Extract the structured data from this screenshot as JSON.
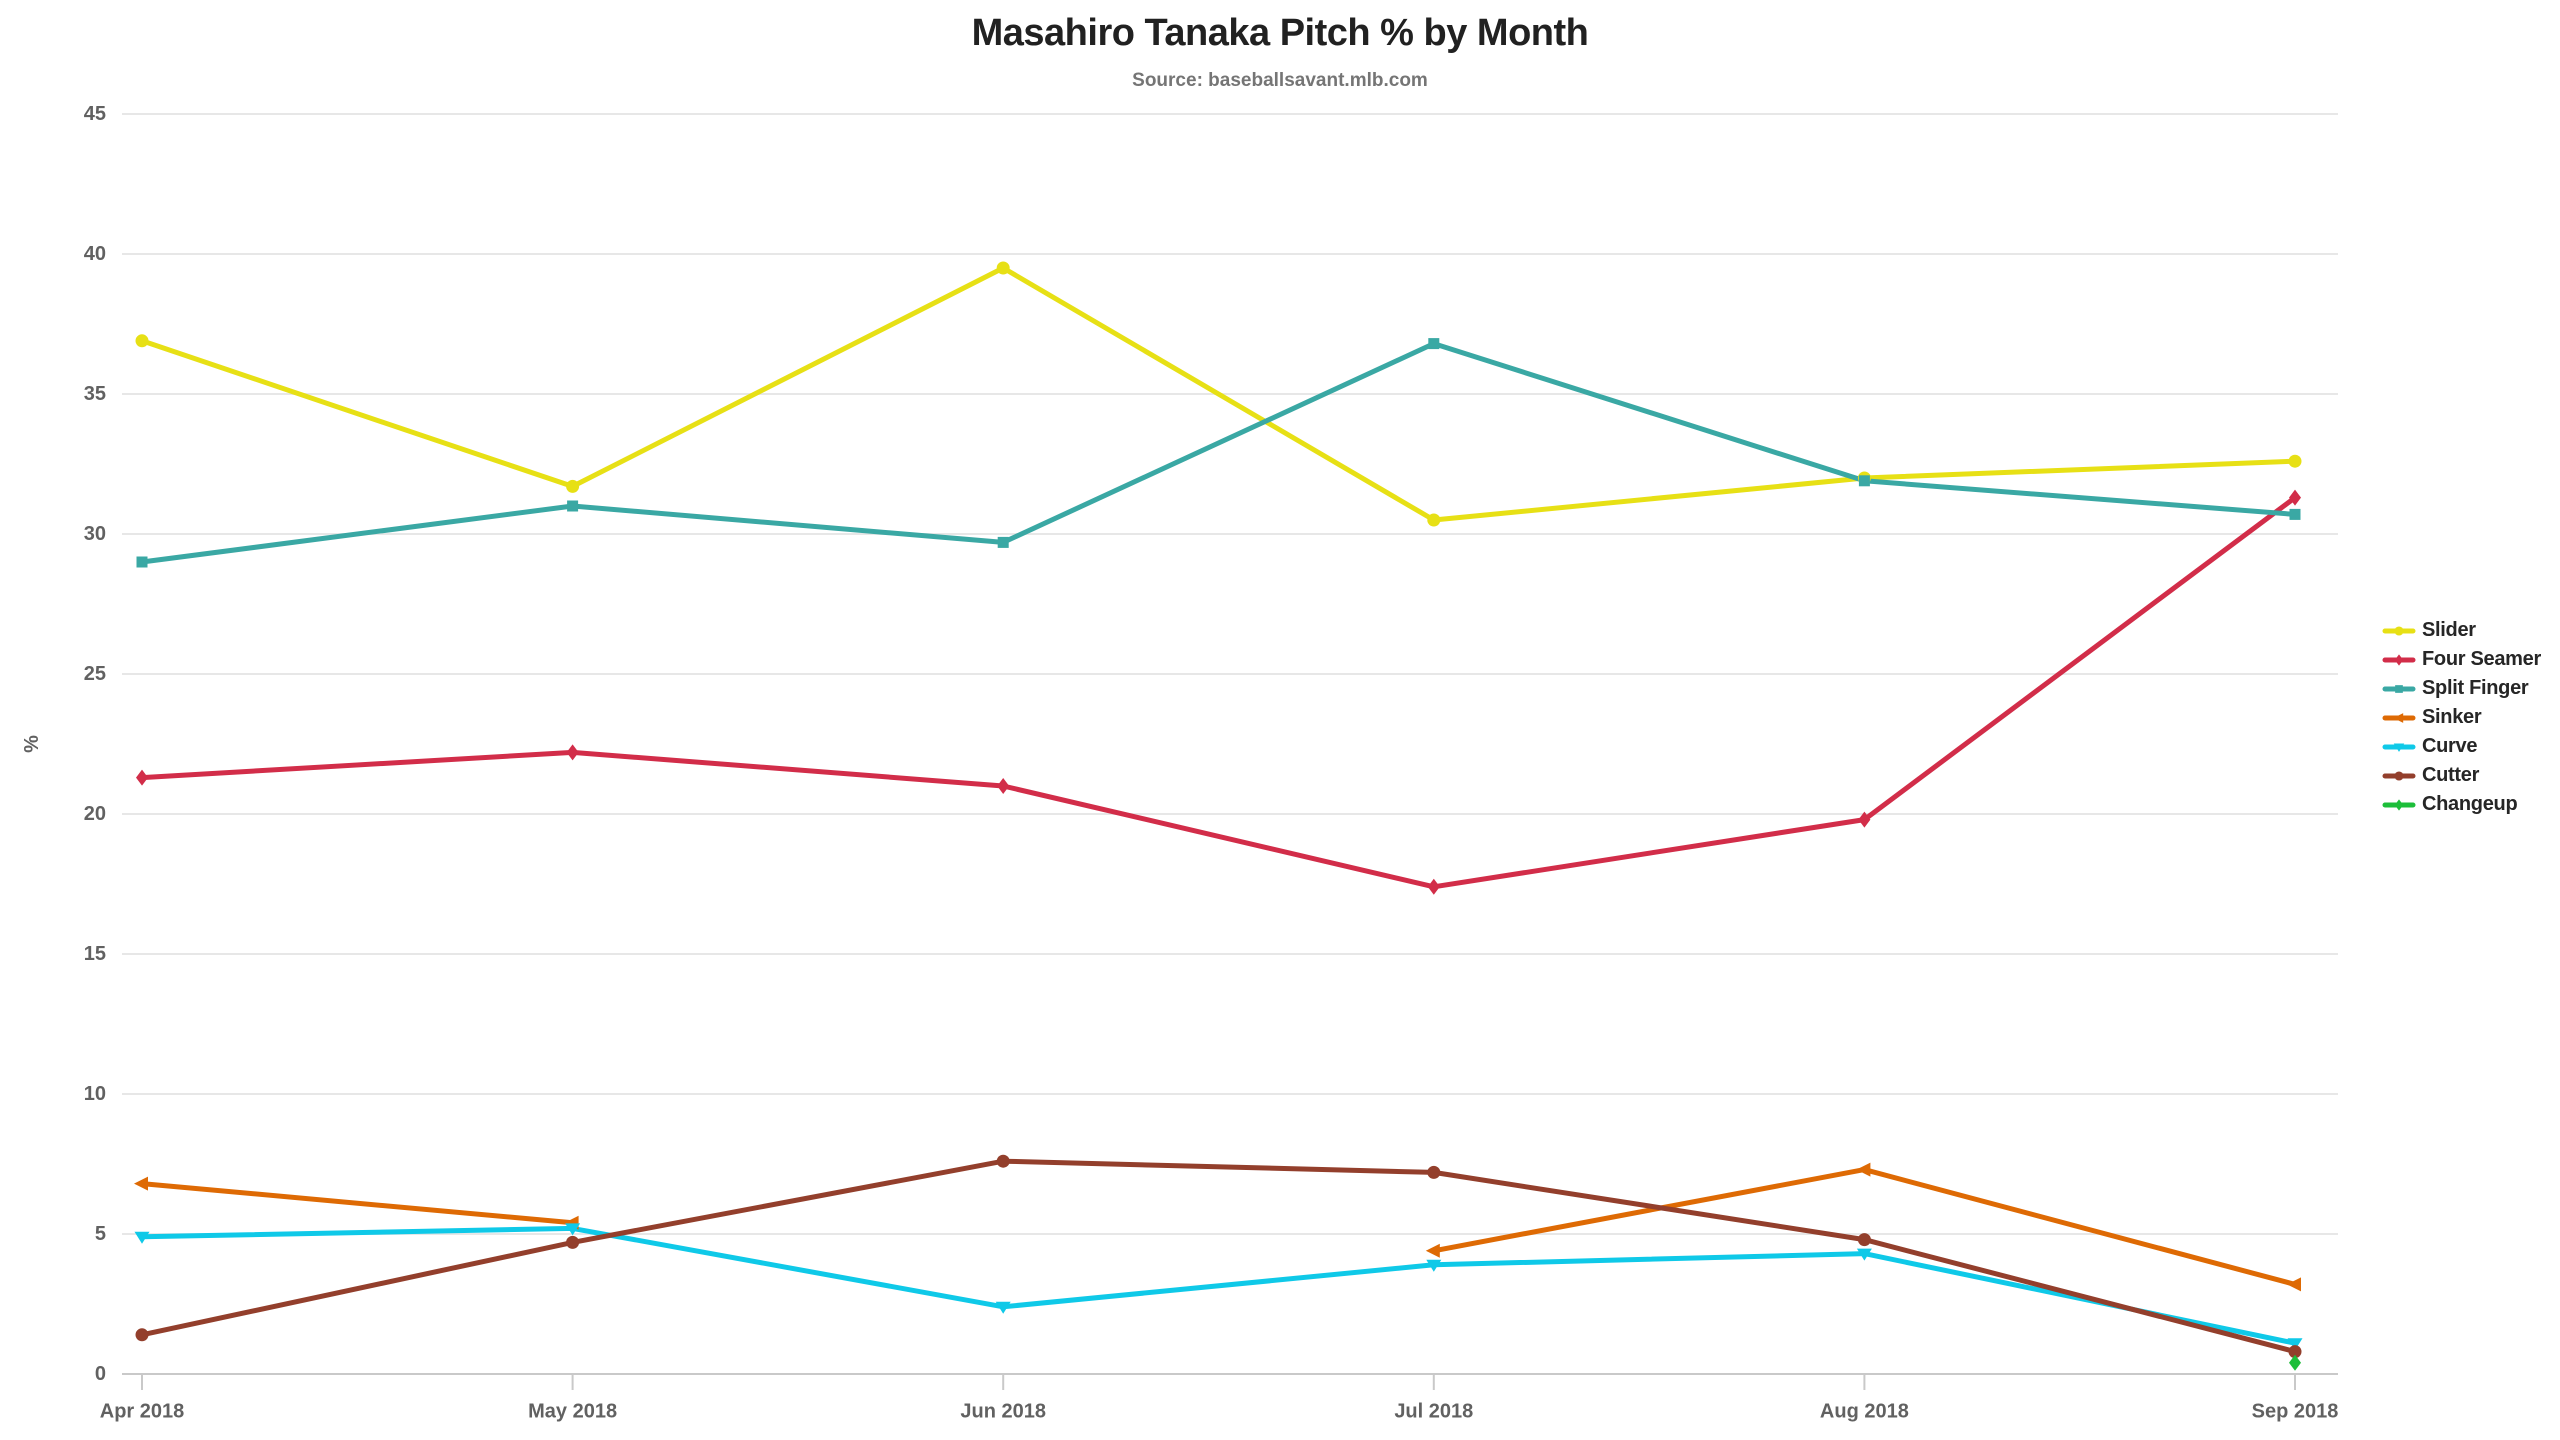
{
  "page": {
    "title": "Masahiro Tanaka Pitch % by Month",
    "subtitle": "Source: baseballsavant.mlb.com"
  },
  "chart_data": {
    "type": "line",
    "title": "Masahiro Tanaka Pitch % by Month",
    "subtitle": "Source: baseballsavant.mlb.com",
    "xlabel": "",
    "ylabel": "%",
    "ylim": [
      0,
      45
    ],
    "ytick_step": 5,
    "y_tick_labels": [
      "0",
      "5",
      "10",
      "15",
      "20",
      "25",
      "30",
      "35",
      "40",
      "45"
    ],
    "grid": true,
    "legend_position": "right",
    "categories": [
      "Apr 2018",
      "May 2018",
      "Jun 2018",
      "Jul 2018",
      "Aug 2018",
      "Sep 2018"
    ],
    "series": [
      {
        "name": "Slider",
        "color": "#e7e015",
        "marker": "circle",
        "values": [
          36.9,
          31.7,
          39.5,
          30.5,
          32.0,
          32.6
        ]
      },
      {
        "name": "Four Seamer",
        "color": "#d22d49",
        "marker": "diamond",
        "values": [
          21.3,
          22.2,
          21.0,
          17.4,
          19.8,
          31.3
        ]
      },
      {
        "name": "Split Finger",
        "color": "#3aa8a4",
        "marker": "square",
        "values": [
          29.0,
          31.0,
          29.7,
          36.8,
          31.9,
          30.7
        ]
      },
      {
        "name": "Sinker",
        "color": "#de6a04",
        "marker": "triangle-left",
        "values": [
          6.8,
          5.4,
          null,
          4.4,
          7.3,
          3.2
        ]
      },
      {
        "name": "Curve",
        "color": "#0fc9e8",
        "marker": "triangle-down",
        "values": [
          4.9,
          5.2,
          2.4,
          3.9,
          4.3,
          1.1
        ]
      },
      {
        "name": "Cutter",
        "color": "#933f2c",
        "marker": "circle",
        "values": [
          1.4,
          4.7,
          7.6,
          7.2,
          4.8,
          0.8
        ]
      },
      {
        "name": "Changeup",
        "color": "#1dbe3a",
        "marker": "diamond",
        "values": [
          null,
          null,
          null,
          null,
          null,
          0.4
        ]
      }
    ],
    "colors": {
      "gridline": "#e7e7e7",
      "axis_line": "#c9c9c9",
      "tick_label": "#616161",
      "title": "#212121",
      "subtitle": "#757575",
      "legend_label": "#262626",
      "background": "#ffffff"
    }
  }
}
